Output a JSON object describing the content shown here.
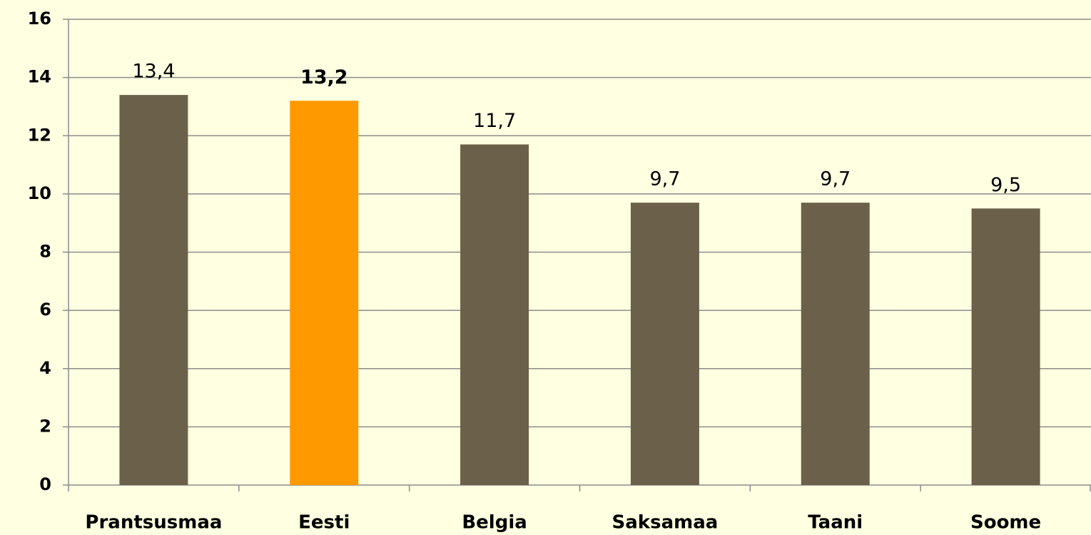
{
  "chart_data": {
    "type": "bar",
    "categories": [
      "Prantsusmaa",
      "Eesti",
      "Belgia",
      "Saksamaa",
      "Taani",
      "Soome"
    ],
    "values": [
      13.4,
      13.2,
      11.7,
      9.7,
      9.7,
      9.5
    ],
    "value_labels": [
      "13,4",
      "13,2",
      "11,7",
      "9,7",
      "9,7",
      "9,5"
    ],
    "colors": [
      "#6b6049",
      "#ff9900",
      "#6b6049",
      "#6b6049",
      "#6b6049",
      "#6b6049"
    ],
    "bold_labels": [
      false,
      true,
      false,
      false,
      false,
      false
    ],
    "ylim": [
      0,
      16
    ],
    "yticks": [
      0,
      2,
      4,
      6,
      8,
      10,
      12,
      14,
      16
    ],
    "grid": true
  }
}
